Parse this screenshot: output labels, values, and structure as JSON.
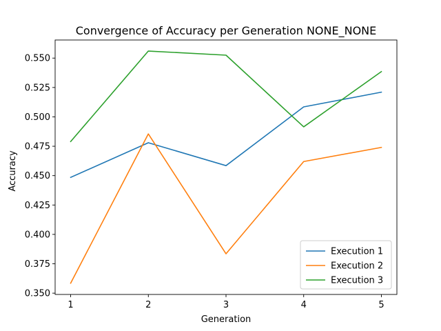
{
  "chart_data": {
    "type": "line",
    "title": "Convergence of Accuracy per Generation NONE_NONE",
    "xlabel": "Generation",
    "ylabel": "Accuracy",
    "x": [
      1,
      2,
      3,
      4,
      5
    ],
    "xticks": [
      "1",
      "2",
      "3",
      "4",
      "5"
    ],
    "xlim": [
      0.8,
      5.2
    ],
    "ylim": [
      0.3489,
      0.5654
    ],
    "yticks": [
      "0.350",
      "0.375",
      "0.400",
      "0.425",
      "0.450",
      "0.475",
      "0.500",
      "0.525",
      "0.550"
    ],
    "grid": false,
    "legend_position": "lower-right",
    "series": [
      {
        "name": "Execution 1",
        "color": "#1f77b4",
        "values": [
          0.4485,
          0.478,
          0.4585,
          0.5085,
          0.521
        ]
      },
      {
        "name": "Execution 2",
        "color": "#ff7f0e",
        "values": [
          0.3585,
          0.4855,
          0.3835,
          0.462,
          0.474
        ]
      },
      {
        "name": "Execution 3",
        "color": "#2ca02c",
        "values": [
          0.479,
          0.556,
          0.5525,
          0.4915,
          0.5385
        ]
      }
    ]
  }
}
